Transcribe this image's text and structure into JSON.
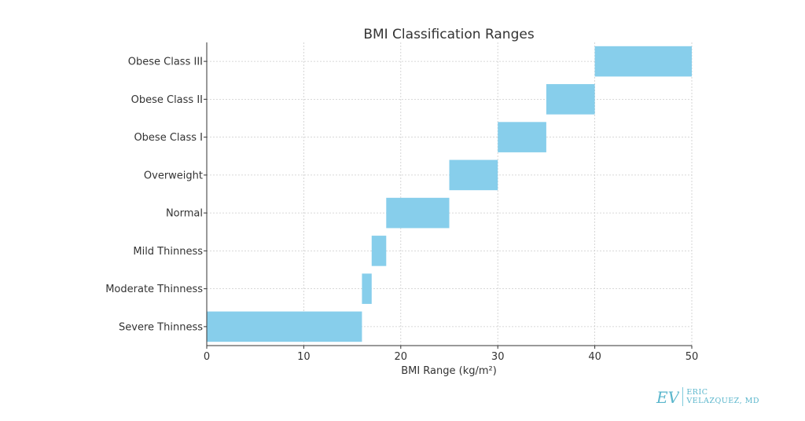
{
  "chart_data": {
    "type": "bar",
    "orientation": "horizontal-range",
    "title": "BMI Classification Ranges",
    "xlabel": "BMI Range (kg/m²)",
    "ylabel": "",
    "xlim": [
      0,
      50
    ],
    "xticks": [
      0,
      10,
      20,
      30,
      40,
      50
    ],
    "grid": true,
    "bar_color": "#87ceeb",
    "categories": [
      "Severe Thinness",
      "Moderate Thinness",
      "Mild Thinness",
      "Normal",
      "Overweight",
      "Obese Class I",
      "Obese Class II",
      "Obese Class III"
    ],
    "ranges": [
      [
        0,
        16
      ],
      [
        16,
        17
      ],
      [
        17,
        18.5
      ],
      [
        18.5,
        25
      ],
      [
        25,
        30
      ],
      [
        30,
        35
      ],
      [
        35,
        40
      ],
      [
        40,
        50
      ]
    ]
  },
  "logo": {
    "monogram": "EV",
    "line1": "ERIC",
    "line2": "VELAZQUEZ, MD",
    "color": "#5ab6cc"
  }
}
